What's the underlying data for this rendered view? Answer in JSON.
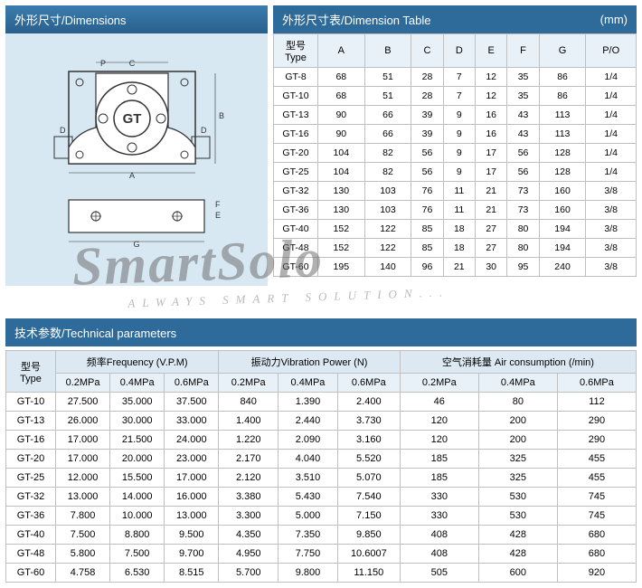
{
  "titles": {
    "dimensions": "外形尺寸/Dimensions",
    "dimension_table": "外形尺寸表/Dimension Table",
    "dimension_unit": "(mm)",
    "technical": "技术参数/Technical parameters",
    "type_col": "型号\nType",
    "freq_group": "频率Frequency (V.P.M)",
    "vib_group": "振动力Vibration Power (N)",
    "air_group": "空气消耗量 Air consumption (/min)",
    "p02": "0.2MPa",
    "p04": "0.4MPa",
    "p06": "0.6MPa"
  },
  "diagram_label": "GT",
  "dim_columns": [
    "型号\nType",
    "A",
    "B",
    "C",
    "D",
    "E",
    "F",
    "G",
    "P/O"
  ],
  "dim_rows": [
    [
      "GT-8",
      "68",
      "51",
      "28",
      "7",
      "12",
      "35",
      "86",
      "1/4"
    ],
    [
      "GT-10",
      "68",
      "51",
      "28",
      "7",
      "12",
      "35",
      "86",
      "1/4"
    ],
    [
      "GT-13",
      "90",
      "66",
      "39",
      "9",
      "16",
      "43",
      "113",
      "1/4"
    ],
    [
      "GT-16",
      "90",
      "66",
      "39",
      "9",
      "16",
      "43",
      "113",
      "1/4"
    ],
    [
      "GT-20",
      "104",
      "82",
      "56",
      "9",
      "17",
      "56",
      "128",
      "1/4"
    ],
    [
      "GT-25",
      "104",
      "82",
      "56",
      "9",
      "17",
      "56",
      "128",
      "1/4"
    ],
    [
      "GT-32",
      "130",
      "103",
      "76",
      "11",
      "21",
      "73",
      "160",
      "3/8"
    ],
    [
      "GT-36",
      "130",
      "103",
      "76",
      "11",
      "21",
      "73",
      "160",
      "3/8"
    ],
    [
      "GT-40",
      "152",
      "122",
      "85",
      "18",
      "27",
      "80",
      "194",
      "3/8"
    ],
    [
      "GT-48",
      "152",
      "122",
      "85",
      "18",
      "27",
      "80",
      "194",
      "3/8"
    ],
    [
      "GT-60",
      "195",
      "140",
      "96",
      "21",
      "30",
      "95",
      "240",
      "3/8"
    ]
  ],
  "tech_rows": [
    [
      "GT-10",
      "27.500",
      "35.000",
      "37.500",
      "840",
      "1.390",
      "2.400",
      "46",
      "80",
      "112"
    ],
    [
      "GT-13",
      "26.000",
      "30.000",
      "33.000",
      "1.400",
      "2.440",
      "3.730",
      "120",
      "200",
      "290"
    ],
    [
      "GT-16",
      "17.000",
      "21.500",
      "24.000",
      "1.220",
      "2.090",
      "3.160",
      "120",
      "200",
      "290"
    ],
    [
      "GT-20",
      "17.000",
      "20.000",
      "23.000",
      "2.170",
      "4.040",
      "5.520",
      "185",
      "325",
      "455"
    ],
    [
      "GT-25",
      "12.000",
      "15.500",
      "17.000",
      "2.120",
      "3.510",
      "5.070",
      "185",
      "325",
      "455"
    ],
    [
      "GT-32",
      "13.000",
      "14.000",
      "16.000",
      "3.380",
      "5.430",
      "7.540",
      "330",
      "530",
      "745"
    ],
    [
      "GT-36",
      "7.800",
      "10.000",
      "13.000",
      "3.300",
      "5.000",
      "7.150",
      "330",
      "530",
      "745"
    ],
    [
      "GT-40",
      "7.500",
      "8.800",
      "9.500",
      "4.350",
      "7.350",
      "9.850",
      "408",
      "428",
      "680"
    ],
    [
      "GT-48",
      "5.800",
      "7.500",
      "9.700",
      "4.950",
      "7.750",
      "10.6007",
      "408",
      "428",
      "680"
    ],
    [
      "GT-60",
      "4.758",
      "6.530",
      "8.515",
      "5.700",
      "9.800",
      "11.150",
      "505",
      "600",
      "920"
    ]
  ],
  "watermark": {
    "main": "SmartSolo",
    "sub": "ALWAYS SMART SOLUTION..."
  }
}
